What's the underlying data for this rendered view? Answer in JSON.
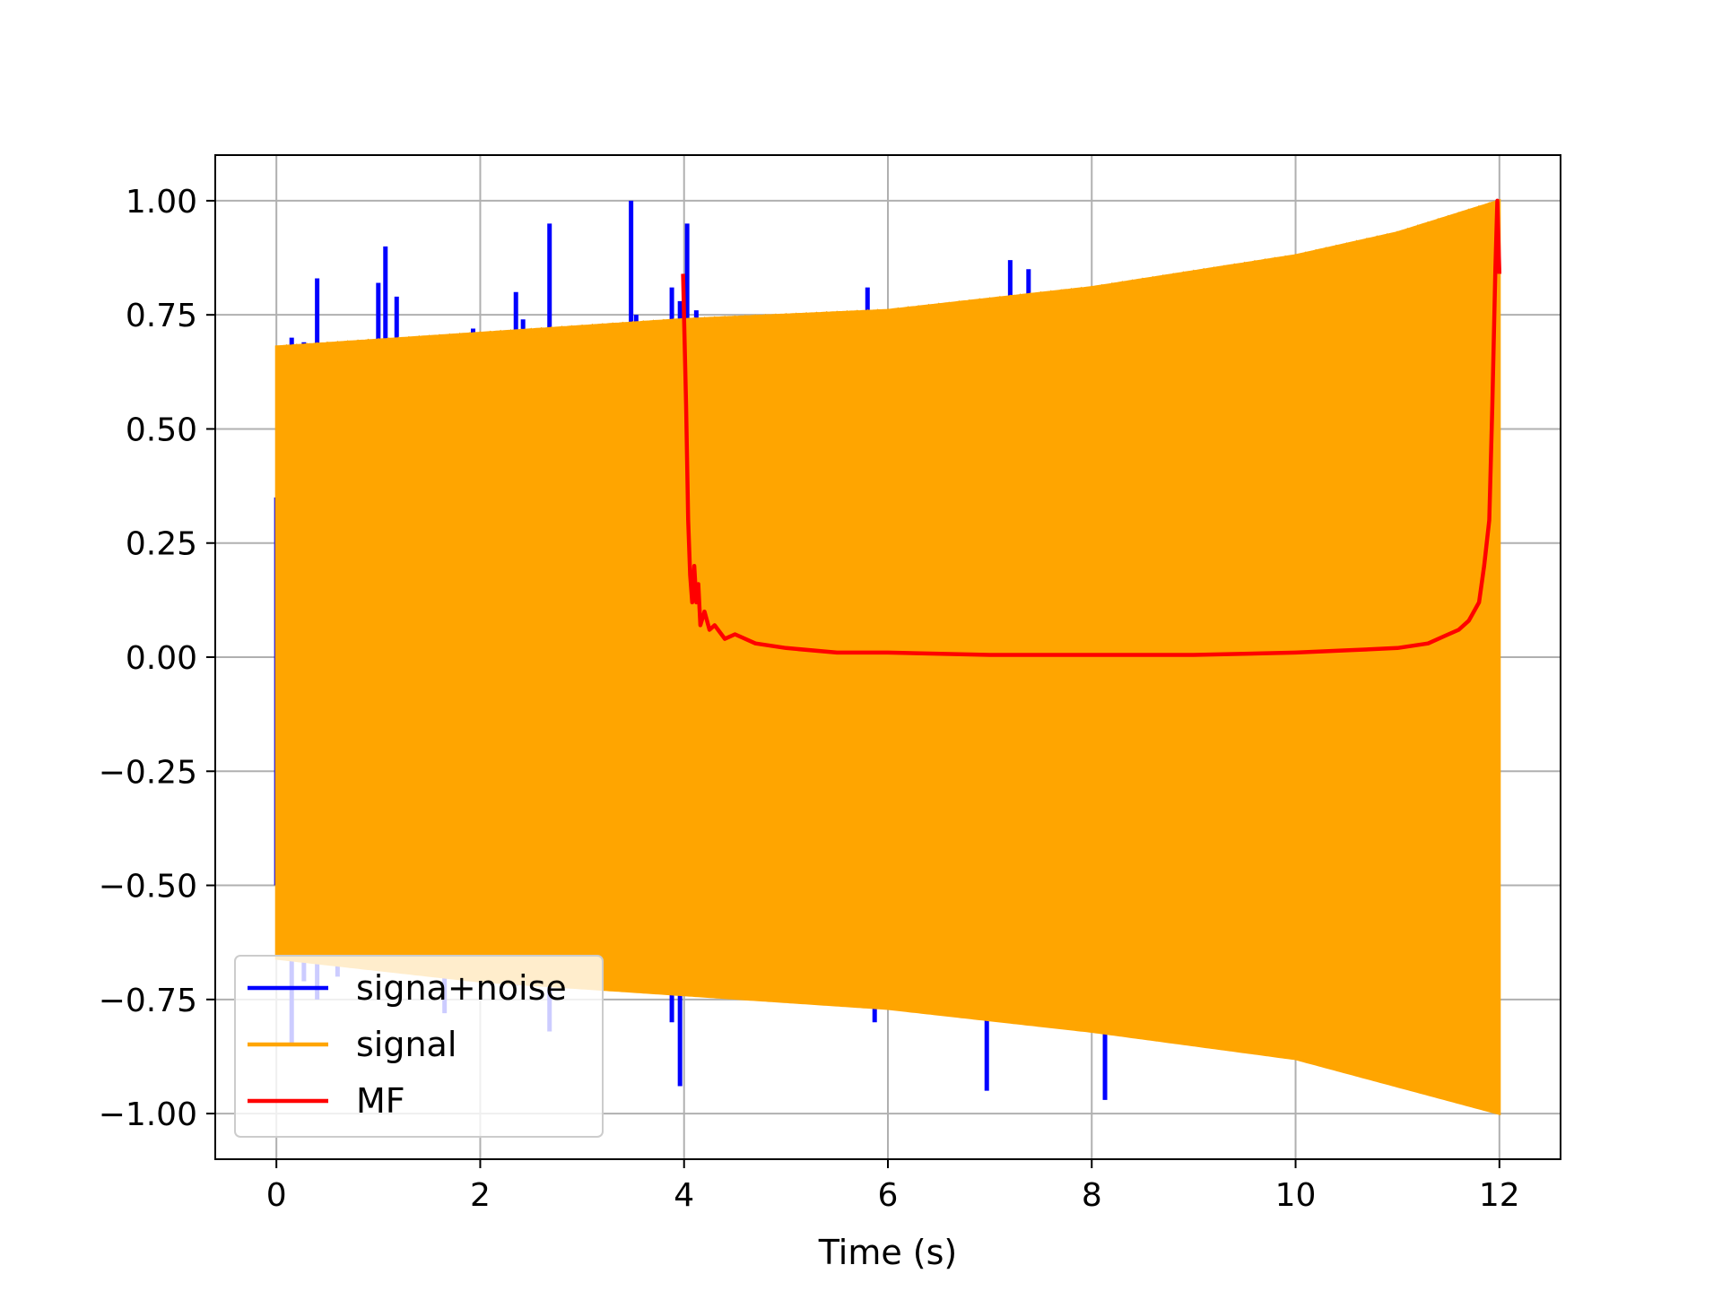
{
  "chart_data": {
    "type": "line",
    "title": "",
    "xlabel": "Time (s)",
    "ylabel": "",
    "xlim": [
      -0.6,
      12.6
    ],
    "ylim": [
      -1.1,
      1.1
    ],
    "grid": true,
    "legend_position": "lower-left",
    "xticks": [
      0,
      2,
      4,
      6,
      8,
      10,
      12
    ],
    "xtick_labels": [
      "0",
      "2",
      "4",
      "6",
      "8",
      "10",
      "12"
    ],
    "yticks": [
      1.0,
      0.75,
      0.5,
      0.25,
      0.0,
      -0.25,
      -0.5,
      -0.75,
      -1.0
    ],
    "ytick_labels": [
      "1.00",
      "0.75",
      "0.50",
      "0.25",
      "0.00",
      "−0.25",
      "−0.50",
      "−0.75",
      "−1.00"
    ],
    "series": [
      {
        "name": "signa+noise",
        "color": "#0000ff",
        "spikes": [
          {
            "x": 0.0,
            "y0": -0.5,
            "y1": 0.35
          },
          {
            "x": 0.15,
            "y0": -0.85,
            "y1": 0.7
          },
          {
            "x": 0.27,
            "y0": -0.71,
            "y1": 0.69
          },
          {
            "x": 0.4,
            "y0": -0.75,
            "y1": 0.83
          },
          {
            "x": 0.6,
            "y0": -0.7,
            "y1": 0.6
          },
          {
            "x": 1.0,
            "y0": -0.5,
            "y1": 0.82
          },
          {
            "x": 1.07,
            "y0": -0.55,
            "y1": 0.9
          },
          {
            "x": 1.18,
            "y0": -0.6,
            "y1": 0.79
          },
          {
            "x": 1.65,
            "y0": -0.78,
            "y1": 0.6
          },
          {
            "x": 1.93,
            "y0": -0.6,
            "y1": 0.72
          },
          {
            "x": 2.35,
            "y0": -0.72,
            "y1": 0.8
          },
          {
            "x": 2.42,
            "y0": -0.65,
            "y1": 0.74
          },
          {
            "x": 2.68,
            "y0": -0.82,
            "y1": 0.95
          },
          {
            "x": 3.45,
            "y0": -0.6,
            "y1": 0.73
          },
          {
            "x": 3.48,
            "y0": -0.6,
            "y1": 1.0
          },
          {
            "x": 3.53,
            "y0": -0.6,
            "y1": 0.75
          },
          {
            "x": 3.88,
            "y0": -0.8,
            "y1": 0.81
          },
          {
            "x": 3.96,
            "y0": -0.94,
            "y1": 0.78
          },
          {
            "x": 4.03,
            "y0": -0.74,
            "y1": 0.95
          },
          {
            "x": 4.12,
            "y0": -0.6,
            "y1": 0.76
          },
          {
            "x": 4.68,
            "y0": -0.75,
            "y1": 0.6
          },
          {
            "x": 5.8,
            "y0": -0.7,
            "y1": 0.81
          },
          {
            "x": 5.87,
            "y0": -0.8,
            "y1": 0.6
          },
          {
            "x": 6.97,
            "y0": -0.95,
            "y1": 0.6
          },
          {
            "x": 7.15,
            "y0": -0.79,
            "y1": 0.6
          },
          {
            "x": 7.2,
            "y0": -0.7,
            "y1": 0.87
          },
          {
            "x": 7.27,
            "y0": -0.8,
            "y1": 0.6
          },
          {
            "x": 7.38,
            "y0": -0.7,
            "y1": 0.85
          },
          {
            "x": 8.13,
            "y0": -0.97,
            "y1": 0.6
          }
        ]
      },
      {
        "name": "signal",
        "color": "#ffa500",
        "x_range": [
          0,
          12
        ],
        "upper_envelope": {
          "x": [
            0,
            2,
            4,
            6,
            8,
            10,
            11,
            12
          ],
          "y": [
            0.68,
            0.71,
            0.74,
            0.76,
            0.81,
            0.88,
            0.93,
            1.0
          ]
        },
        "lower_envelope": {
          "x": [
            0,
            2,
            4,
            6,
            8,
            10,
            11,
            12
          ],
          "y": [
            -0.66,
            -0.71,
            -0.74,
            -0.77,
            -0.82,
            -0.88,
            -0.94,
            -1.0
          ]
        }
      },
      {
        "name": "MF",
        "color": "#ff0000",
        "x": [
          3.99,
          4.02,
          4.04,
          4.06,
          4.08,
          4.1,
          4.12,
          4.14,
          4.16,
          4.2,
          4.25,
          4.3,
          4.4,
          4.5,
          4.7,
          5.0,
          5.5,
          6.0,
          7.0,
          8.0,
          9.0,
          10.0,
          10.5,
          11.0,
          11.3,
          11.5,
          11.6,
          11.7,
          11.8,
          11.85,
          11.9,
          11.93,
          11.96,
          11.98,
          12.0
        ],
        "y": [
          0.84,
          0.55,
          0.3,
          0.18,
          0.12,
          0.2,
          0.12,
          0.16,
          0.07,
          0.1,
          0.06,
          0.07,
          0.04,
          0.05,
          0.03,
          0.02,
          0.01,
          0.01,
          0.005,
          0.005,
          0.005,
          0.01,
          0.015,
          0.02,
          0.03,
          0.05,
          0.06,
          0.08,
          0.12,
          0.2,
          0.3,
          0.55,
          0.85,
          1.0,
          0.84
        ]
      }
    ]
  }
}
